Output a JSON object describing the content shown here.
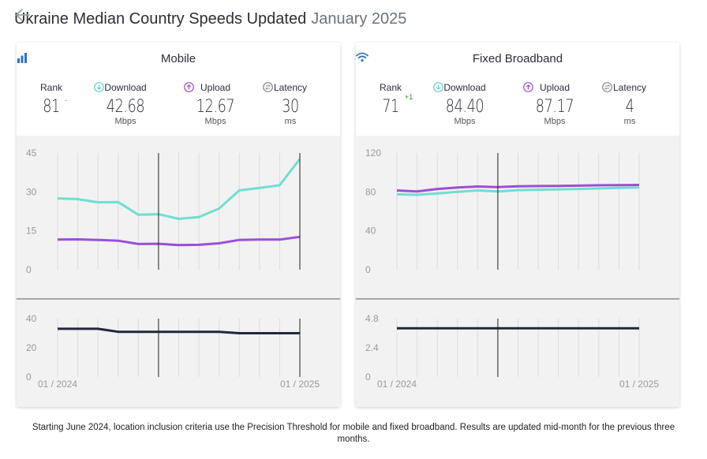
{
  "header": {
    "back_icon": "arrow-left-icon",
    "title_main": "Ukraine Median Country Speeds Updated",
    "title_date": "January 2025"
  },
  "panels": {
    "mobile": {
      "title": "Mobile",
      "icon": "signal-bars-icon",
      "rank_label": "Rank",
      "rank_value": "81",
      "rank_delta": "-",
      "download_label": "Download",
      "download_value": "42.68",
      "download_unit": "Mbps",
      "upload_label": "Upload",
      "upload_value": "12.67",
      "upload_unit": "Mbps",
      "latency_label": "Latency",
      "latency_value": "30",
      "latency_unit": "ms"
    },
    "fixed": {
      "title": "Fixed Broadband",
      "icon": "wifi-icon",
      "rank_label": "Rank",
      "rank_value": "71",
      "rank_delta": "+1",
      "download_label": "Download",
      "download_value": "84.40",
      "download_unit": "Mbps",
      "upload_label": "Upload",
      "upload_value": "87.17",
      "upload_unit": "Mbps",
      "latency_label": "Latency",
      "latency_value": "4",
      "latency_unit": "ms"
    }
  },
  "colors": {
    "download": "#6fdfd0",
    "upload": "#9b4fd6",
    "latency": "#22283a",
    "grid": "#dcdcdc",
    "axis": "#9a9a9a"
  },
  "chart_data": [
    {
      "type": "line",
      "name": "mobile-speeds",
      "x": [
        "01 / 2024",
        "02 / 2024",
        "03 / 2024",
        "04 / 2024",
        "05 / 2024",
        "06 / 2024",
        "07 / 2024",
        "08 / 2024",
        "09 / 2024",
        "10 / 2024",
        "11 / 2024",
        "12 / 2024",
        "01 / 2025"
      ],
      "x_tick_labels": [
        "01 / 2024",
        "01 / 2025"
      ],
      "ylim": [
        0,
        45
      ],
      "yticks": [
        0,
        15,
        30,
        45
      ],
      "series": [
        {
          "key": "download",
          "values": [
            27.5,
            27.2,
            26,
            26.1,
            21.2,
            21.4,
            19.6,
            20.3,
            23.6,
            30.6,
            31.5,
            32.6,
            42.68
          ]
        },
        {
          "key": "upload",
          "values": [
            11.6,
            11.7,
            11.5,
            11.2,
            9.9,
            10.0,
            9.5,
            9.6,
            10.2,
            11.5,
            11.6,
            11.6,
            12.67
          ]
        }
      ]
    },
    {
      "type": "line",
      "name": "mobile-latency",
      "x": [
        "01 / 2024",
        "02 / 2024",
        "03 / 2024",
        "04 / 2024",
        "05 / 2024",
        "06 / 2024",
        "07 / 2024",
        "08 / 2024",
        "09 / 2024",
        "10 / 2024",
        "11 / 2024",
        "12 / 2024",
        "01 / 2025"
      ],
      "ylim": [
        0,
        40
      ],
      "yticks": [
        0,
        20,
        40
      ],
      "series": [
        {
          "key": "latency",
          "values": [
            33,
            33,
            33,
            31,
            31,
            31,
            31,
            31,
            31,
            30,
            30,
            30,
            30
          ]
        }
      ]
    },
    {
      "type": "line",
      "name": "fixed-speeds",
      "x": [
        "01 / 2024",
        "02 / 2024",
        "03 / 2024",
        "04 / 2024",
        "05 / 2024",
        "06 / 2024",
        "07 / 2024",
        "08 / 2024",
        "09 / 2024",
        "10 / 2024",
        "11 / 2024",
        "12 / 2024",
        "01 / 2025"
      ],
      "x_tick_labels": [
        "01 / 2024",
        "01 / 2025"
      ],
      "ylim": [
        0,
        120
      ],
      "yticks": [
        0,
        40,
        80,
        120
      ],
      "series": [
        {
          "key": "download",
          "values": [
            77.5,
            77,
            78.5,
            80,
            81.5,
            80.5,
            81.8,
            82.3,
            82.6,
            83,
            83.6,
            84.1,
            84.4
          ]
        },
        {
          "key": "upload",
          "values": [
            81.5,
            80.5,
            83,
            84.5,
            85.5,
            85,
            85.8,
            86,
            86.2,
            86.4,
            86.8,
            87,
            87.17
          ]
        }
      ]
    },
    {
      "type": "line",
      "name": "fixed-latency",
      "x": [
        "01 / 2024",
        "02 / 2024",
        "03 / 2024",
        "04 / 2024",
        "05 / 2024",
        "06 / 2024",
        "07 / 2024",
        "08 / 2024",
        "09 / 2024",
        "10 / 2024",
        "11 / 2024",
        "12 / 2024",
        "01 / 2025"
      ],
      "ylim": [
        0,
        4.8
      ],
      "yticks": [
        0,
        2.4,
        4.8
      ],
      "series": [
        {
          "key": "latency",
          "values": [
            4,
            4,
            4,
            4,
            4,
            4,
            4,
            4,
            4,
            4,
            4,
            4,
            4
          ]
        }
      ]
    }
  ],
  "footnote": "Starting June 2024, location inclusion criteria use the Precision Threshold for mobile and fixed broadband. Results are updated mid-month for the previous three months."
}
